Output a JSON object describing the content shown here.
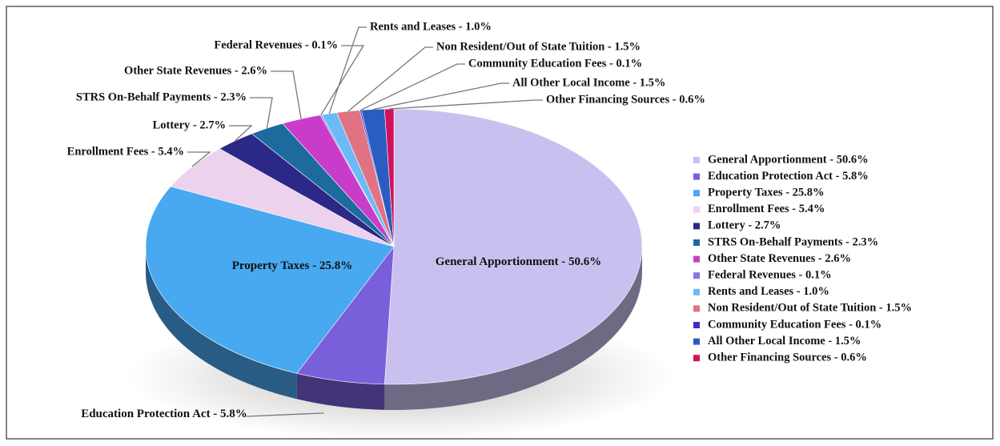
{
  "chart_data": {
    "type": "pie",
    "categories": [
      "General Apportionment - 50.6%",
      "Education Protection Act - 5.8%",
      "Property Taxes - 25.8%",
      "Enrollment Fees - 5.4%",
      "Lottery - 2.7%",
      "STRS On-Behalf Payments - 2.3%",
      "Other State Revenues - 2.6%",
      "Federal Revenues - 0.1%",
      "Rents and Leases - 1.0%",
      "Non Resident/Out of State Tuition - 1.5%",
      "Community Education Fees - 0.1%",
      "All Other Local Income - 1.5%",
      "Other Financing Sources - 0.6%"
    ],
    "values": [
      50.6,
      5.8,
      25.8,
      5.4,
      2.7,
      2.3,
      2.6,
      0.1,
      1.0,
      1.5,
      0.1,
      1.5,
      0.6
    ],
    "colors": [
      "#c9c0f0",
      "#7a5fdb",
      "#48a8f0",
      "#ecd2ec",
      "#2b2888",
      "#1d6b9e",
      "#c93cc9",
      "#8d72e2",
      "#6cbaf5",
      "#e07284",
      "#3b2fc2",
      "#2a5dc2",
      "#d2105c"
    ],
    "legend": "right"
  }
}
